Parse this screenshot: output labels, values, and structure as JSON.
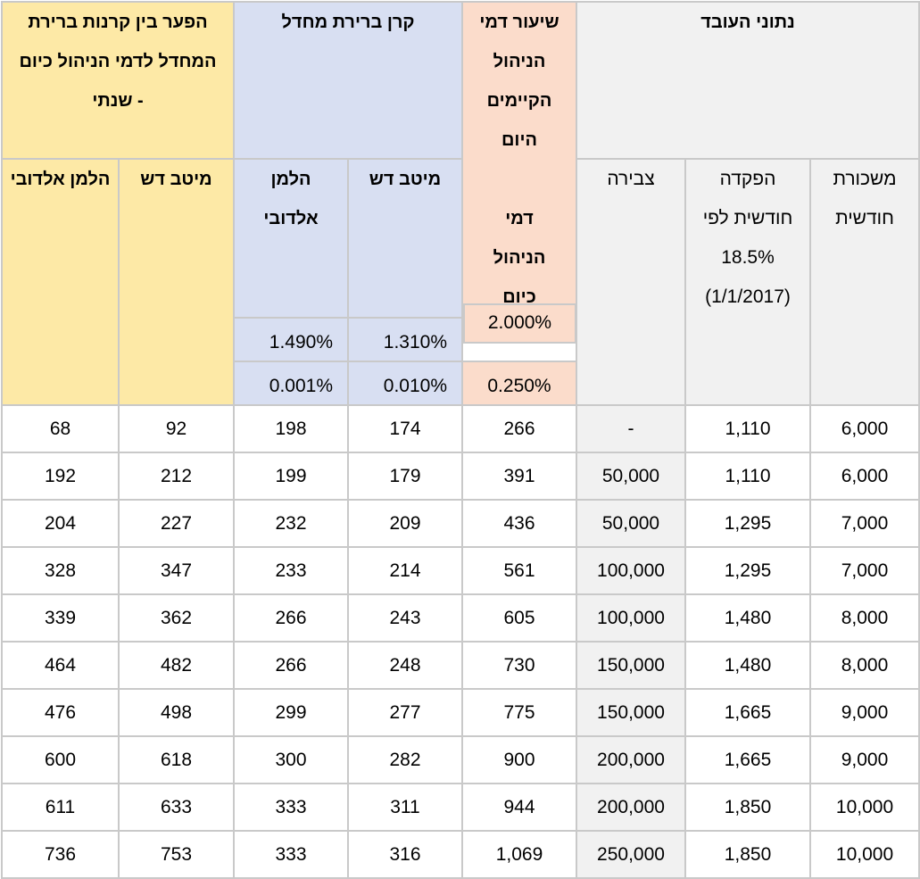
{
  "header": {
    "gap_group": "הפער בין קרנות ברירת המחדל לדמי הניהול כיום - שנתי",
    "fund_group": "קרן ברירת מחדל",
    "current_fee_title": "שיעור דמי הניהול הקיימים היום",
    "current_fee_sub": "דמי הניהול כיום",
    "employee_group": "נתוני העובד",
    "col_accumulation": "צבירה",
    "col_deposit": "הפקדה חודשית לפי 18.5% (1/1/2017)",
    "col_salary": "משכורת חודשית",
    "gap_helman": "הלמן אלדובי",
    "gap_meitav": "מיטב דש",
    "fund_helman": "הלמן אלדובי",
    "fund_meitav": "מיטב דש"
  },
  "rates": {
    "deposit": {
      "helman": "1.490%",
      "meitav": "1.310%",
      "current": "2.000%"
    },
    "accumulation": {
      "helman": "0.001%",
      "meitav": "0.010%",
      "current": "0.250%"
    }
  },
  "colors": {
    "yellow": "#fde9a6",
    "blue": "#d8dff2",
    "pink": "#fbdccb",
    "gray": "#f1f1f1",
    "border": "#c9c9c9"
  },
  "rows": [
    {
      "gap_helman": "68",
      "gap_meitav": "92",
      "fund_helman": "198",
      "fund_meitav": "174",
      "current": "266",
      "accumulation": "-",
      "deposit": "1,110",
      "salary": "6,000"
    },
    {
      "gap_helman": "192",
      "gap_meitav": "212",
      "fund_helman": "199",
      "fund_meitav": "179",
      "current": "391",
      "accumulation": "50,000",
      "deposit": "1,110",
      "salary": "6,000"
    },
    {
      "gap_helman": "204",
      "gap_meitav": "227",
      "fund_helman": "232",
      "fund_meitav": "209",
      "current": "436",
      "accumulation": "50,000",
      "deposit": "1,295",
      "salary": "7,000"
    },
    {
      "gap_helman": "328",
      "gap_meitav": "347",
      "fund_helman": "233",
      "fund_meitav": "214",
      "current": "561",
      "accumulation": "100,000",
      "deposit": "1,295",
      "salary": "7,000"
    },
    {
      "gap_helman": "339",
      "gap_meitav": "362",
      "fund_helman": "266",
      "fund_meitav": "243",
      "current": "605",
      "accumulation": "100,000",
      "deposit": "1,480",
      "salary": "8,000"
    },
    {
      "gap_helman": "464",
      "gap_meitav": "482",
      "fund_helman": "266",
      "fund_meitav": "248",
      "current": "730",
      "accumulation": "150,000",
      "deposit": "1,480",
      "salary": "8,000"
    },
    {
      "gap_helman": "476",
      "gap_meitav": "498",
      "fund_helman": "299",
      "fund_meitav": "277",
      "current": "775",
      "accumulation": "150,000",
      "deposit": "1,665",
      "salary": "9,000"
    },
    {
      "gap_helman": "600",
      "gap_meitav": "618",
      "fund_helman": "300",
      "fund_meitav": "282",
      "current": "900",
      "accumulation": "200,000",
      "deposit": "1,665",
      "salary": "9,000"
    },
    {
      "gap_helman": "611",
      "gap_meitav": "633",
      "fund_helman": "333",
      "fund_meitav": "311",
      "current": "944",
      "accumulation": "200,000",
      "deposit": "1,850",
      "salary": "10,000"
    },
    {
      "gap_helman": "736",
      "gap_meitav": "753",
      "fund_helman": "333",
      "fund_meitav": "316",
      "current": "1,069",
      "accumulation": "250,000",
      "deposit": "1,850",
      "salary": "10,000"
    }
  ]
}
